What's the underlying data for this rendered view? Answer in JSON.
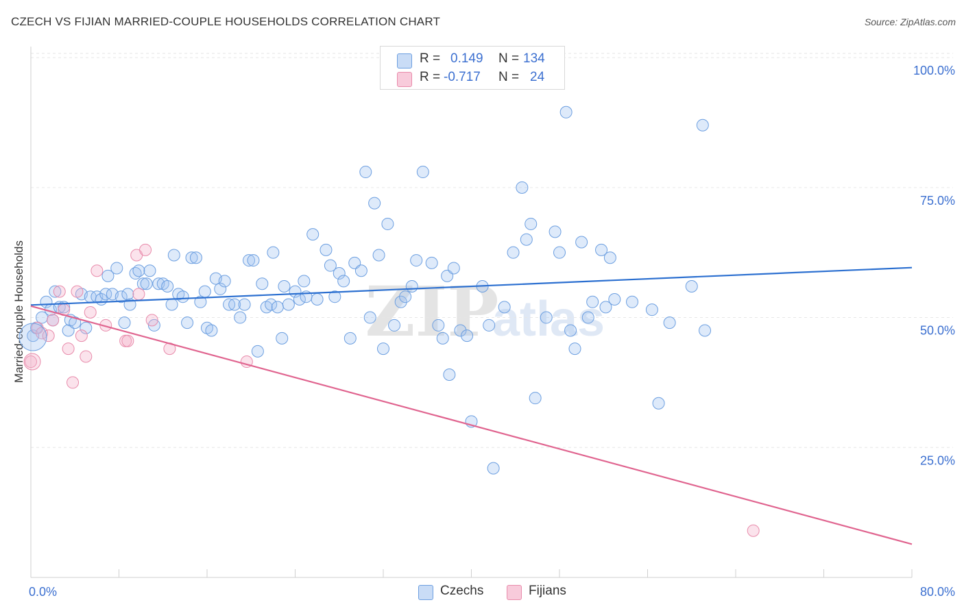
{
  "title": "CZECH VS FIJIAN MARRIED-COUPLE HOUSEHOLDS CORRELATION CHART",
  "source": "Source: ZipAtlas.com",
  "watermark": {
    "zip": "ZIP",
    "atlas": "atlas"
  },
  "legend_top": {
    "r_label": "R =",
    "n_label": "N =",
    "rows": [
      {
        "r": "0.149",
        "n": "134",
        "color": "#6b9ee0"
      },
      {
        "r": "-0.717",
        "n": "24",
        "color": "#e88aaa"
      }
    ]
  },
  "chart_data": {
    "type": "scatter",
    "title": "CZECH VS FIJIAN MARRIED-COUPLE HOUSEHOLDS CORRELATION CHART",
    "ylabel": "Married-couple Households",
    "xlabel": "",
    "xlim": [
      0,
      80
    ],
    "ylim": [
      0,
      105
    ],
    "x_ticks": [
      {
        "value": 0,
        "label": "0.0%"
      },
      {
        "value": 80,
        "label": "80.0%"
      }
    ],
    "y_ticks": [
      {
        "value": 25,
        "label": "25.0%"
      },
      {
        "value": 50,
        "label": "50.0%"
      },
      {
        "value": 75,
        "label": "75.0%"
      },
      {
        "value": 100,
        "label": "100.0%"
      }
    ],
    "grid": true,
    "legend_position": "bottom",
    "series": [
      {
        "name": "Czechs",
        "color": "#6b9ee0",
        "r": 0.149,
        "n": 134,
        "trend": {
          "x": [
            0,
            80
          ],
          "y": [
            52.4,
            59.6
          ]
        },
        "points": [
          [
            0.2,
            46.5
          ],
          [
            0.5,
            48
          ],
          [
            1,
            50
          ],
          [
            1.4,
            53
          ],
          [
            1.8,
            51.5
          ],
          [
            2,
            49.5
          ],
          [
            2.2,
            55
          ],
          [
            2.6,
            52
          ],
          [
            3,
            52
          ],
          [
            3.4,
            47.5
          ],
          [
            3.6,
            49.5
          ],
          [
            4,
            49
          ],
          [
            4.6,
            54.5
          ],
          [
            5,
            48
          ],
          [
            5.4,
            54
          ],
          [
            6,
            54
          ],
          [
            6.4,
            53.5
          ],
          [
            6.8,
            54.5
          ],
          [
            7,
            58
          ],
          [
            7.4,
            54.5
          ],
          [
            7.8,
            59.5
          ],
          [
            8.2,
            54
          ],
          [
            8.5,
            49
          ],
          [
            8.8,
            54.5
          ],
          [
            9,
            52.5
          ],
          [
            9.5,
            58.5
          ],
          [
            9.8,
            59
          ],
          [
            10.2,
            56.5
          ],
          [
            10.5,
            56.5
          ],
          [
            10.8,
            59
          ],
          [
            11.2,
            48.5
          ],
          [
            11.6,
            56.5
          ],
          [
            12,
            56.5
          ],
          [
            12.4,
            56
          ],
          [
            12.8,
            52.5
          ],
          [
            13,
            62
          ],
          [
            13.4,
            54.5
          ],
          [
            13.8,
            54
          ],
          [
            14.2,
            49
          ],
          [
            14.6,
            61.5
          ],
          [
            15,
            61.5
          ],
          [
            15.4,
            53
          ],
          [
            15.8,
            55
          ],
          [
            16,
            48
          ],
          [
            16.4,
            47.5
          ],
          [
            16.8,
            57.5
          ],
          [
            17.2,
            55.5
          ],
          [
            17.6,
            57
          ],
          [
            18,
            52.5
          ],
          [
            18.5,
            52.5
          ],
          [
            19,
            50
          ],
          [
            19.4,
            52.5
          ],
          [
            19.8,
            61
          ],
          [
            20.2,
            61
          ],
          [
            20.6,
            43.5
          ],
          [
            21,
            56.5
          ],
          [
            21.4,
            52
          ],
          [
            21.8,
            52.5
          ],
          [
            22,
            62.5
          ],
          [
            22.4,
            52
          ],
          [
            22.8,
            46
          ],
          [
            23,
            56
          ],
          [
            23.4,
            52.5
          ],
          [
            24,
            55
          ],
          [
            24.4,
            53.5
          ],
          [
            24.8,
            57
          ],
          [
            25,
            54
          ],
          [
            25.6,
            66
          ],
          [
            26,
            53.5
          ],
          [
            26.8,
            63
          ],
          [
            27.2,
            60
          ],
          [
            27.6,
            54
          ],
          [
            28,
            58.5
          ],
          [
            28.4,
            57
          ],
          [
            29,
            46
          ],
          [
            29.4,
            60.5
          ],
          [
            30,
            59
          ],
          [
            30.4,
            78
          ],
          [
            30.8,
            50
          ],
          [
            31.2,
            72
          ],
          [
            31.6,
            62
          ],
          [
            32,
            44
          ],
          [
            32.4,
            68
          ],
          [
            33,
            48.5
          ],
          [
            33.6,
            53
          ],
          [
            34,
            54
          ],
          [
            34.6,
            56
          ],
          [
            35,
            61
          ],
          [
            35.6,
            78
          ],
          [
            36.4,
            60.5
          ],
          [
            37,
            48.5
          ],
          [
            37.4,
            46
          ],
          [
            37.8,
            58
          ],
          [
            38,
            39
          ],
          [
            38.4,
            59.5
          ],
          [
            39,
            47.5
          ],
          [
            39.6,
            46.5
          ],
          [
            40,
            30
          ],
          [
            41,
            56
          ],
          [
            41.6,
            48.5
          ],
          [
            42,
            21
          ],
          [
            43,
            52
          ],
          [
            43.8,
            62.5
          ],
          [
            44.6,
            75
          ],
          [
            45,
            65
          ],
          [
            45.4,
            68
          ],
          [
            45.8,
            34.5
          ],
          [
            46.8,
            50
          ],
          [
            47.6,
            66.5
          ],
          [
            48,
            62.5
          ],
          [
            48.6,
            89.5
          ],
          [
            49,
            47.5
          ],
          [
            49.4,
            44
          ],
          [
            50,
            64.5
          ],
          [
            50.6,
            50
          ],
          [
            51,
            53
          ],
          [
            51.8,
            63
          ],
          [
            52.2,
            52
          ],
          [
            52.6,
            61.5
          ],
          [
            53,
            53.5
          ],
          [
            54.6,
            53
          ],
          [
            56.4,
            51.5
          ],
          [
            57,
            33.5
          ],
          [
            58,
            49
          ],
          [
            60,
            56
          ],
          [
            61,
            87
          ],
          [
            61.2,
            47.5
          ]
        ]
      },
      {
        "name": "Fijians",
        "color": "#e88aaa",
        "r": -0.717,
        "n": 24,
        "trend": {
          "x": [
            0,
            80
          ],
          "y": [
            52.2,
            6.4
          ]
        },
        "points": [
          [
            0,
            41.5
          ],
          [
            0.6,
            48
          ],
          [
            1,
            47
          ],
          [
            1.6,
            46.5
          ],
          [
            2,
            49.5
          ],
          [
            2.6,
            55
          ],
          [
            3,
            51.5
          ],
          [
            3.4,
            44
          ],
          [
            3.8,
            37.5
          ],
          [
            4.2,
            55
          ],
          [
            4.6,
            46.5
          ],
          [
            5,
            42.5
          ],
          [
            5.4,
            51
          ],
          [
            6,
            59
          ],
          [
            6.8,
            48.5
          ],
          [
            8.6,
            45.5
          ],
          [
            8.8,
            45.5
          ],
          [
            9.6,
            62
          ],
          [
            9.8,
            54.5
          ],
          [
            10.4,
            63
          ],
          [
            11,
            49.5
          ],
          [
            12.6,
            44
          ],
          [
            19.6,
            41.5
          ],
          [
            65.6,
            9
          ]
        ]
      }
    ]
  }
}
